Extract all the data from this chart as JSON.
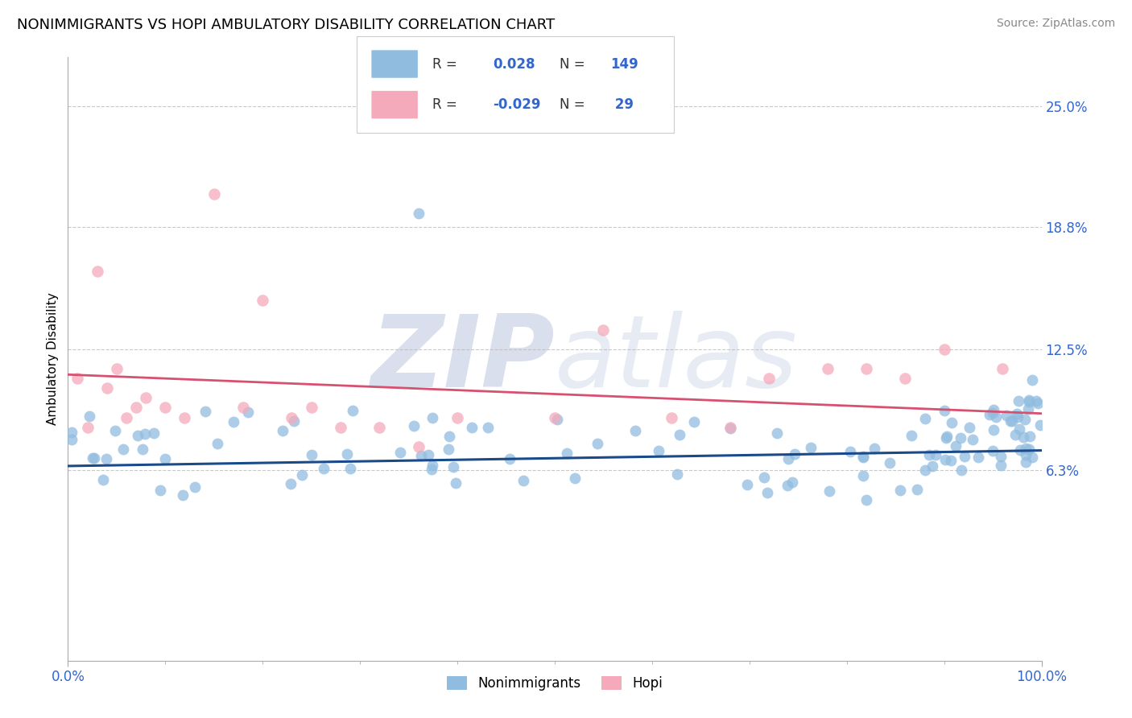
{
  "title": "NONIMMIGRANTS VS HOPI AMBULATORY DISABILITY CORRELATION CHART",
  "source": "Source: ZipAtlas.com",
  "ylabel": "Ambulatory Disability",
  "xlim": [
    0,
    100
  ],
  "ylim": [
    -3.5,
    27.5
  ],
  "yticks": [
    6.3,
    12.5,
    18.8,
    25.0
  ],
  "ytick_labels": [
    "6.3%",
    "12.5%",
    "18.8%",
    "25.0%"
  ],
  "xtick_labels": [
    "0.0%",
    "100.0%"
  ],
  "blue_color": "#90bce0",
  "pink_color": "#f5aabb",
  "blue_line_color": "#1a4a8a",
  "pink_line_color": "#d85070",
  "blue_legend_color": "#90bce0",
  "pink_legend_color": "#f5aabb",
  "legend_text_color": "#3366cc",
  "pink_legend_text_color": "#cc3355",
  "watermark_color": "#d0d8e8",
  "background_color": "#ffffff",
  "grid_color": "#cccccc",
  "nonimmigrants_R": 0.028,
  "nonimmigrants_N": 149,
  "hopi_R": -0.029,
  "hopi_N": 29,
  "blue_intercept": 6.5,
  "blue_slope": 0.008,
  "pink_intercept": 11.2,
  "pink_slope": -0.02
}
